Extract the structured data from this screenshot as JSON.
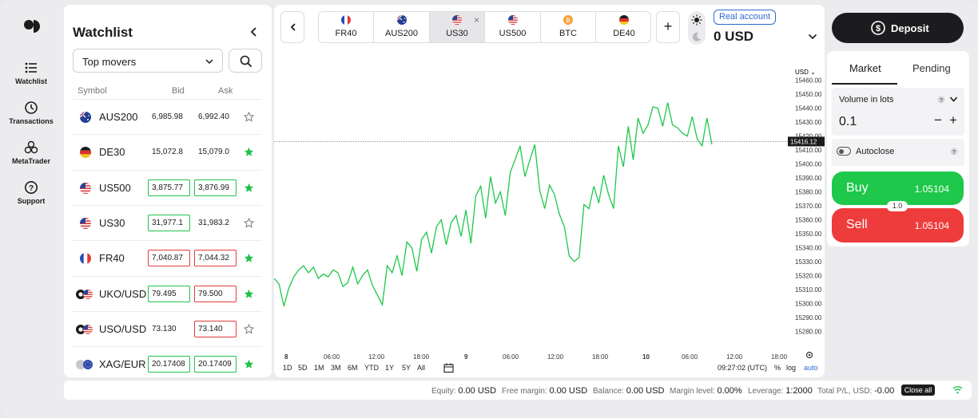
{
  "rail": {
    "items": [
      {
        "label": "Watchlist",
        "icon": "list-icon"
      },
      {
        "label": "Transactions",
        "icon": "history-icon"
      },
      {
        "label": "MetaTrader",
        "icon": "metatrader-icon"
      },
      {
        "label": "Support",
        "icon": "question-icon"
      }
    ]
  },
  "watchlist": {
    "title": "Watchlist",
    "filter": "Top movers",
    "columns": {
      "symbol": "Symbol",
      "bid": "Bid",
      "ask": "Ask"
    },
    "rows": [
      {
        "symbol": "AUS200",
        "bid": "6,985.98",
        "ask": "6,992.40",
        "bid_dir": "none",
        "ask_dir": "none",
        "starred": false,
        "flag": "au"
      },
      {
        "symbol": "DE30",
        "bid": "15,072.8",
        "ask": "15,079.0",
        "bid_dir": "none",
        "ask_dir": "none",
        "starred": true,
        "flag": "de"
      },
      {
        "symbol": "US500",
        "bid": "3,875.77",
        "ask": "3,876.99",
        "bid_dir": "up",
        "ask_dir": "up",
        "starred": true,
        "flag": "us"
      },
      {
        "symbol": "US30",
        "bid": "31,977.1",
        "ask": "31,983.2",
        "bid_dir": "up",
        "ask_dir": "none",
        "starred": false,
        "flag": "us"
      },
      {
        "symbol": "FR40",
        "bid": "7,040.87",
        "ask": "7,044.32",
        "bid_dir": "down",
        "ask_dir": "down",
        "starred": true,
        "flag": "fr"
      },
      {
        "symbol": "UKO/USD",
        "bid": "79.495",
        "ask": "79.500",
        "bid_dir": "up",
        "ask_dir": "down",
        "starred": true,
        "flag": "oil"
      },
      {
        "symbol": "USO/USD",
        "bid": "73.130",
        "ask": "73.140",
        "bid_dir": "none",
        "ask_dir": "down",
        "starred": false,
        "flag": "oil"
      },
      {
        "symbol": "XAG/EUR",
        "bid": "20.17408",
        "ask": "20.17409",
        "bid_dir": "up",
        "ask_dir": "up",
        "starred": true,
        "flag": "xag"
      }
    ]
  },
  "tabs": [
    {
      "label": "FR40",
      "flag": "fr",
      "active": false
    },
    {
      "label": "AUS200",
      "flag": "au",
      "active": false
    },
    {
      "label": "US30",
      "flag": "us",
      "active": true
    },
    {
      "label": "US500",
      "flag": "us",
      "active": false
    },
    {
      "label": "BTC",
      "flag": "btc",
      "active": false
    },
    {
      "label": "DE40",
      "flag": "de",
      "active": false
    }
  ],
  "account": {
    "type": "Real account",
    "balance": "0 USD"
  },
  "chart": {
    "currency": "USD ⌄",
    "current_price": "15416.12",
    "y_ticks": [
      "15460.00",
      "15450.00",
      "15440.00",
      "15430.00",
      "15420.00",
      "15410.00",
      "15400.00",
      "15390.00",
      "15380.00",
      "15370.00",
      "15360.00",
      "15350.00",
      "15340.00",
      "15330.00",
      "15320.00",
      "15310.00",
      "15300.00",
      "15290.00",
      "15280.00"
    ],
    "x_ticks": [
      "8",
      "06:00",
      "12:00",
      "18:00",
      "9",
      "06:00",
      "12:00",
      "18:00",
      "10",
      "06:00",
      "12:00",
      "18:00"
    ],
    "timeframes": [
      "1D",
      "5D",
      "1M",
      "3M",
      "6M",
      "YTD",
      "1Y",
      "5Y",
      "All"
    ],
    "clock": "09:27:02 (UTC)",
    "scale_options": [
      "%",
      "log",
      "auto"
    ]
  },
  "chart_data": {
    "type": "line",
    "title": "",
    "xlabel": "",
    "ylabel": "",
    "ylim": [
      15275,
      15465
    ],
    "current_price": 15416.12,
    "series": [
      {
        "values": [
          15318,
          15314,
          15298,
          15311,
          15319,
          15324,
          15327,
          15322,
          15326,
          15318,
          15321,
          15319,
          15324,
          15322,
          15312,
          15315,
          15326,
          15314,
          15320,
          15324,
          15313,
          15306,
          15299,
          15327,
          15322,
          15334,
          15320,
          15344,
          15340,
          15323,
          15346,
          15351,
          15336,
          15355,
          15360,
          15342,
          15358,
          15363,
          15348,
          15367,
          15343,
          15377,
          15384,
          15361,
          15391,
          15372,
          15380,
          15363,
          15394,
          15403,
          15413,
          15391,
          15403,
          15414,
          15381,
          15368,
          15385,
          15378,
          15364,
          15355,
          15334,
          15330,
          15333,
          15371,
          15368,
          15384,
          15372,
          15392,
          15378,
          15368,
          15413,
          15398,
          15427,
          15403,
          15433,
          15422,
          15428,
          15441,
          15440,
          15427,
          15444,
          15428,
          15426,
          15422,
          15420,
          15434,
          15418,
          15413,
          15433,
          15414
        ]
      }
    ]
  },
  "order": {
    "deposit": "Deposit",
    "tab_market": "Market",
    "tab_pending": "Pending",
    "volume_label": "Volume in lots",
    "volume_value": "0.1",
    "autoclose": "Autoclose",
    "buy_label": "Buy",
    "buy_price": "1.05104",
    "sell_label": "Sell",
    "sell_price": "1.05104",
    "spread": "1.0"
  },
  "status": {
    "equity_label": "Equity:",
    "equity": "0.00 USD",
    "free_label": "Free margin:",
    "free": "0.00 USD",
    "balance_label": "Balance:",
    "balance": "0.00 USD",
    "level_label": "Margin level:",
    "level": "0.00%",
    "leverage_label": "Leverage:",
    "leverage": "1:2000",
    "pl_label": "Total P/L, USD:",
    "pl": "-0.00",
    "close_all": "Close all"
  }
}
